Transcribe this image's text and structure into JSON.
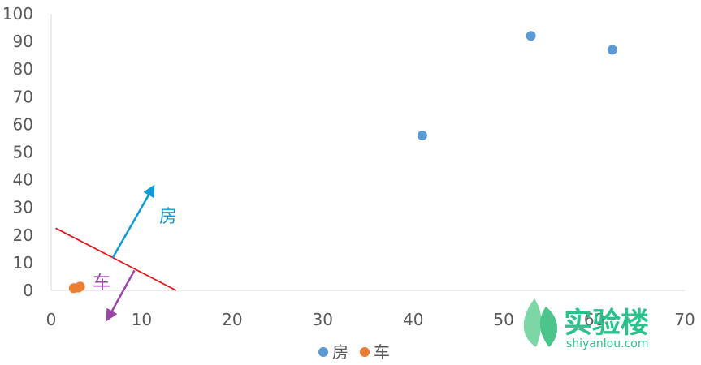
{
  "chart_data": {
    "type": "scatter",
    "title": "",
    "xlabel": "",
    "ylabel": "",
    "xlim": [
      0,
      70
    ],
    "ylim": [
      0,
      100
    ],
    "x_ticks": [
      0,
      10,
      20,
      30,
      40,
      50,
      60,
      70
    ],
    "y_ticks": [
      0,
      10,
      20,
      30,
      40,
      50,
      60,
      70,
      80,
      90,
      100
    ],
    "grid": false,
    "legend_position": "bottom",
    "series": [
      {
        "name": "房",
        "color": "#5B9BD5",
        "points": [
          {
            "x": 41,
            "y": 56
          },
          {
            "x": 53,
            "y": 92
          },
          {
            "x": 62,
            "y": 87
          }
        ]
      },
      {
        "name": "车",
        "color": "#ED7D31",
        "points": [
          {
            "x": 2.5,
            "y": 0.8
          },
          {
            "x": 3.0,
            "y": 1.0
          },
          {
            "x": 3.2,
            "y": 1.4
          }
        ]
      }
    ],
    "annotations": {
      "boundary_line": {
        "color": "#E0161C",
        "from": {
          "x": 0.5,
          "y": 22.5
        },
        "to": {
          "x": 13.8,
          "y": 0
        }
      },
      "arrow_house": {
        "label": "房",
        "color": "#0E9AD7",
        "from": {
          "x": 6.8,
          "y": 11.8
        },
        "to": {
          "x": 11.3,
          "y": 37.5
        }
      },
      "arrow_car": {
        "label": "车",
        "color": "#9B44A8",
        "from": {
          "x": 9.2,
          "y": 7.2
        },
        "to": {
          "x": 6.2,
          "y": -10.5
        }
      }
    }
  },
  "watermark": {
    "brand": "实验楼",
    "domain": "shiyanlou.com",
    "brand_color": "#28C28A",
    "leaf_colors": [
      "#7DD6A6",
      "#4CC58C"
    ]
  }
}
